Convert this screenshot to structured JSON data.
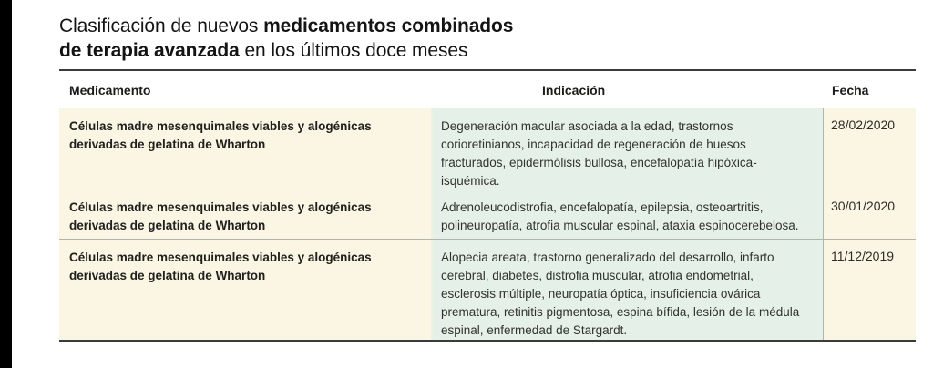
{
  "title": {
    "line1_regular": "Clasificación de nuevos ",
    "line1_bold": "medicamentos combinados",
    "line2_bold": "de terapia avanzada",
    "line2_regular": " en los últimos doce meses"
  },
  "table": {
    "headers": [
      "Medicamento",
      "Indicación",
      "Fecha"
    ],
    "rows": [
      {
        "medicamento": "Células madre mesenquimales viables y alogénicas derivadas de gelatina de Wharton",
        "indicacion": "Degeneración macular asociada a la edad, trastornos corioretinianos, incapacidad de regeneración de huesos fracturados, epidermólisis bullosa, encefalopatía hipóxica-isquémica.",
        "fecha": "28/02/2020"
      },
      {
        "medicamento": "Células madre mesenquimales viables y alogénicas derivadas de gelatina de Wharton",
        "indicacion": "Adrenoleucodistrofia, encefalopatía, epilepsia, osteoartritis, polineuropatía, atrofia muscular espinal, ataxia espinocerebelosa.",
        "fecha": "30/01/2020"
      },
      {
        "medicamento": "Células madre mesenquimales viables y alogénicas derivadas de gelatina de Wharton",
        "indicacion": "Alopecia areata, trastorno generalizado del desarrollo, infarto cerebral, diabetes, distrofia muscular, atrofia endometrial, esclerosis múltiple, neuropatía óptica, insuficiencia ovárica prematura, retinitis pigmentosa, espina bífida, lesión de la médula espinal, enfermedad de Stargardt.",
        "fecha": "11/12/2019"
      }
    ]
  },
  "colors": {
    "accent_bar": "#000000",
    "cream_cell": "#faf6e3",
    "green_cell": "#e5f0e9",
    "dark_rule": "#3b3b3b",
    "row_divider": "#b3b3ae"
  }
}
